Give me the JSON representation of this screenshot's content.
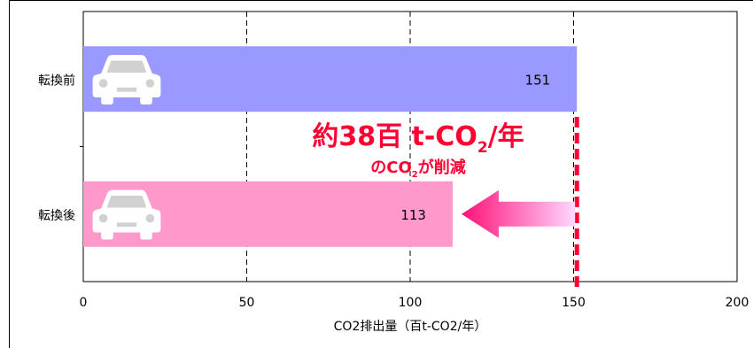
{
  "chart_data": {
    "type": "bar",
    "orientation": "horizontal",
    "categories": [
      "転換前",
      "転換後"
    ],
    "values": [
      151,
      113
    ],
    "bar_colors": [
      "#9999ff",
      "#ff99cc"
    ],
    "xlabel": "CO2排出量（百t-CO2/年）",
    "xlim": [
      0,
      200
    ],
    "xticks": [
      0,
      50,
      100,
      150,
      200
    ],
    "grid": "vertical dashed",
    "bar_icon": "car-icon",
    "annotation": {
      "main_prefix": "約38百 t-CO",
      "main_sub": "2",
      "main_suffix": "/年",
      "sub_prefix": "のCO",
      "sub_sub": "2",
      "sub_suffix": "が削減",
      "color": "#ff0033",
      "marker_value": 151,
      "arrow": "from 151 to 113, pink gradient"
    }
  }
}
